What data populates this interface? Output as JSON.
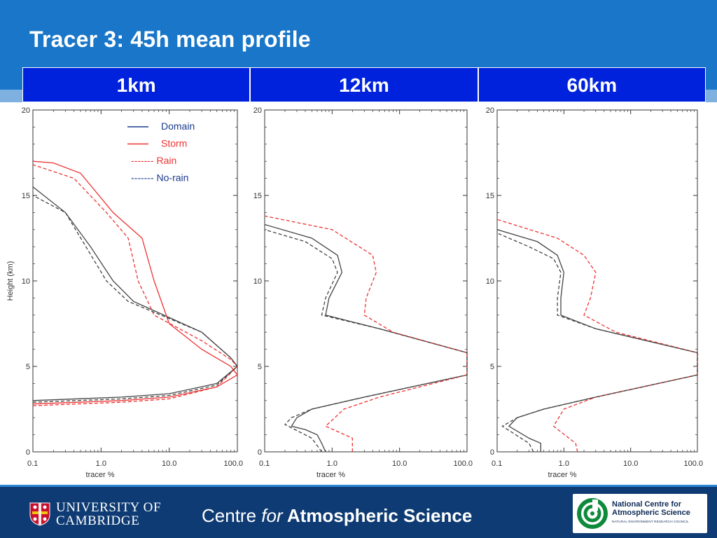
{
  "slide": {
    "title": "Tracer 3: 45h mean profile",
    "columns": [
      "1km",
      "12km",
      "60km"
    ]
  },
  "footer": {
    "cambridge_line1": "UNIVERSITY OF",
    "cambridge_line2": "CAMBRIDGE",
    "centre_prefix": "Centre ",
    "centre_for": "for",
    "centre_suffix": " Atmospheric Science",
    "ncas_line1": "National Centre for",
    "ncas_line2": "Atmospheric Science",
    "ncas_line3": "NATURAL ENVIRONMENT RESEARCH COUNCIL"
  },
  "colors": {
    "header": "#1976c8",
    "column_header": "#0022dd",
    "footer": "#0e3b73",
    "domain": "#444444",
    "storm": "#ee3333",
    "legend_text": "#1a3b8c"
  },
  "chart_data": [
    {
      "type": "line",
      "panel": "1km",
      "xlabel": "tracer %",
      "ylabel": "Height (km)",
      "x_scale": "log",
      "xlim": [
        0.1,
        100.0
      ],
      "ylim": [
        0,
        20
      ],
      "x_ticks": [
        "0.1",
        "1.0",
        "10.0",
        "100.0"
      ],
      "y_ticks": [
        "0",
        "5",
        "10",
        "15",
        "20"
      ],
      "legend": [
        "Domain",
        "Storm",
        "------- Rain",
        "------- No-rain"
      ],
      "legend_placement": "top-right",
      "series": [
        {
          "name": "Domain",
          "style": "solid",
          "color": "#444444",
          "x": [
            0.1,
            2.0,
            10.0,
            50.0,
            100.0,
            80.0,
            30.0,
            3.0,
            1.5,
            0.7,
            0.3,
            0.1
          ],
          "y": [
            3.0,
            3.2,
            3.4,
            4.0,
            5.0,
            5.5,
            7.0,
            8.8,
            10.0,
            12.0,
            14.0,
            15.5
          ]
        },
        {
          "name": "Storm",
          "style": "solid",
          "color": "#ee3333",
          "x": [
            0.1,
            2.0,
            10.0,
            50.0,
            100.0,
            80.0,
            30.0,
            10.0,
            6.0,
            4.0,
            1.5,
            0.5,
            0.2,
            0.1
          ],
          "y": [
            2.8,
            3.0,
            3.2,
            3.8,
            4.5,
            5.0,
            6.0,
            7.5,
            10.0,
            12.5,
            14.0,
            16.3,
            16.9,
            17.0
          ]
        },
        {
          "name": "Rain",
          "style": "dashed",
          "color": "#ee3333",
          "x": [
            0.1,
            2.0,
            10.0,
            50.0,
            100.0,
            80.0,
            30.0,
            6.0,
            3.5,
            2.5,
            1.2,
            0.4,
            0.1
          ],
          "y": [
            2.7,
            2.9,
            3.1,
            3.8,
            5.0,
            5.4,
            6.5,
            8.0,
            10.0,
            12.5,
            14.0,
            16.0,
            16.8
          ]
        },
        {
          "name": "No-rain",
          "style": "dashed",
          "color": "#444444",
          "x": [
            0.1,
            2.0,
            10.0,
            50.0,
            100.0,
            80.0,
            30.0,
            2.5,
            1.2,
            0.6,
            0.3,
            0.1
          ],
          "y": [
            2.9,
            3.1,
            3.3,
            3.9,
            5.0,
            5.5,
            7.0,
            8.8,
            10.0,
            12.0,
            14.0,
            15.0
          ]
        }
      ]
    },
    {
      "type": "line",
      "panel": "12km",
      "xlabel": "tracer %",
      "x_scale": "log",
      "xlim": [
        0.1,
        100.0
      ],
      "ylim": [
        0,
        20
      ],
      "x_ticks": [
        "0.1",
        "1.0",
        "10.0",
        "100.0"
      ],
      "y_ticks": [
        "0",
        "5",
        "10",
        "15",
        "20"
      ],
      "series": [
        {
          "name": "Domain",
          "style": "solid",
          "color": "#444444",
          "x": [
            0.8,
            0.7,
            0.6,
            0.4,
            0.25,
            0.3,
            0.5,
            3.0,
            100.0,
            100.0,
            5.0,
            0.8,
            0.9,
            1.4,
            1.2,
            0.5,
            0.1
          ],
          "y": [
            0.0,
            0.5,
            1.0,
            1.3,
            1.5,
            2.0,
            2.5,
            3.2,
            4.5,
            5.8,
            7.2,
            8.0,
            9.0,
            10.5,
            11.5,
            12.5,
            13.3
          ]
        },
        {
          "name": "Rain",
          "style": "dashed",
          "color": "#ee3333",
          "x": [
            2.0,
            2.0,
            0.8,
            1.5,
            5.0,
            100.0,
            100.0,
            8.0,
            3.0,
            3.2,
            4.5,
            4.0,
            1.0,
            0.1
          ],
          "y": [
            0.0,
            0.8,
            1.5,
            2.5,
            3.2,
            4.5,
            5.8,
            7.0,
            8.0,
            9.0,
            10.5,
            11.5,
            13.0,
            13.8
          ]
        },
        {
          "name": "No-rain",
          "style": "dashed",
          "color": "#444444",
          "x": [
            0.7,
            0.5,
            0.2,
            0.25,
            0.5,
            3.0,
            100.0,
            100.0,
            5.0,
            0.7,
            0.8,
            1.2,
            1.0,
            0.4,
            0.1
          ],
          "y": [
            0.0,
            0.8,
            1.6,
            2.0,
            2.5,
            3.2,
            4.5,
            5.8,
            7.2,
            8.0,
            9.0,
            10.5,
            11.3,
            12.3,
            13.0
          ]
        }
      ]
    },
    {
      "type": "line",
      "panel": "60km",
      "xlabel": "tracer %",
      "x_scale": "log",
      "xlim": [
        0.1,
        100.0
      ],
      "ylim": [
        0,
        20
      ],
      "x_ticks": [
        "0.1",
        "1.0",
        "10.0",
        "100.0"
      ],
      "y_ticks": [
        "0",
        "5",
        "10",
        "15",
        "20"
      ],
      "series": [
        {
          "name": "Domain",
          "style": "solid",
          "color": "#444444",
          "x": [
            0.45,
            0.45,
            0.3,
            0.15,
            0.2,
            0.5,
            3.0,
            100.0,
            100.0,
            3.0,
            0.9,
            0.9,
            1.0,
            0.8,
            0.4,
            0.1
          ],
          "y": [
            0.0,
            0.5,
            0.8,
            1.5,
            2.0,
            2.5,
            3.2,
            4.5,
            5.8,
            7.2,
            8.0,
            9.0,
            10.5,
            11.5,
            12.3,
            13.0
          ]
        },
        {
          "name": "Rain",
          "style": "dashed",
          "color": "#ee3333",
          "x": [
            1.6,
            1.5,
            0.7,
            1.0,
            3.0,
            100.0,
            100.0,
            6.0,
            2.0,
            2.5,
            3.0,
            2.0,
            0.8,
            0.1
          ],
          "y": [
            0.0,
            0.5,
            1.5,
            2.5,
            3.2,
            4.5,
            5.8,
            7.0,
            8.0,
            9.0,
            10.5,
            11.5,
            12.5,
            13.6
          ]
        },
        {
          "name": "No-rain",
          "style": "dashed",
          "color": "#444444",
          "x": [
            0.35,
            0.3,
            0.12,
            0.2,
            0.5,
            3.0,
            100.0,
            100.0,
            3.0,
            0.8,
            0.8,
            0.9,
            0.7,
            0.3,
            0.1
          ],
          "y": [
            0.0,
            0.5,
            1.5,
            2.0,
            2.5,
            3.2,
            4.5,
            5.8,
            7.2,
            8.0,
            9.0,
            10.5,
            11.3,
            12.0,
            12.8
          ]
        }
      ]
    }
  ]
}
